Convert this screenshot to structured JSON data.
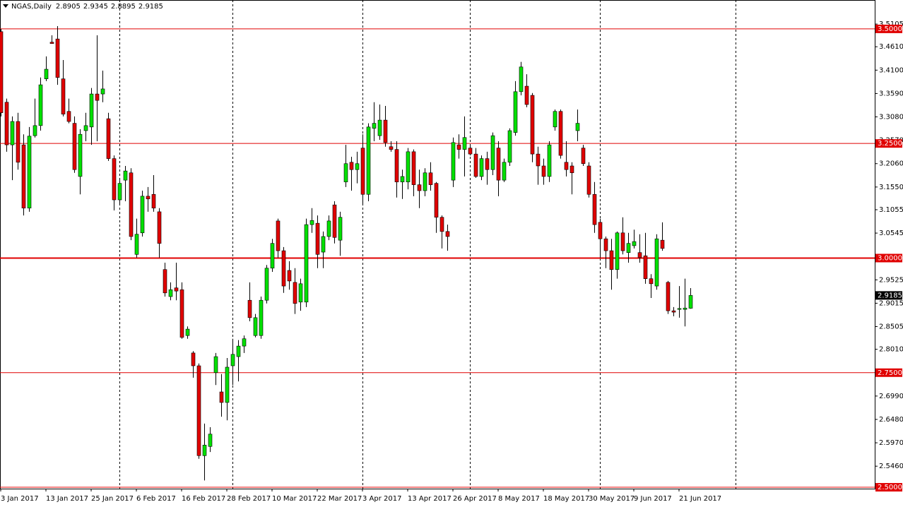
{
  "chart_data": {
    "type": "candlestick",
    "symbol": "NGAS,Daily",
    "header_ohlc": [
      2.8905,
      2.9345,
      2.8895,
      2.9185
    ],
    "current_price": 2.9185,
    "up_color": "#00e000",
    "down_color": "#e00000",
    "level_color": "#e00000",
    "ylim": [
      2.497,
      3.563
    ],
    "yticks": [
      {
        "value": 3.5105,
        "label": "3.5105"
      },
      {
        "value": 3.461,
        "label": "3.4610"
      },
      {
        "value": 3.41,
        "label": "3.4100"
      },
      {
        "value": 3.359,
        "label": "3.3590"
      },
      {
        "value": 3.308,
        "label": "3.3080"
      },
      {
        "value": 3.257,
        "label": "3.2570"
      },
      {
        "value": 3.206,
        "label": "3.2060"
      },
      {
        "value": 3.155,
        "label": "3.1550"
      },
      {
        "value": 3.1055,
        "label": "3.1055"
      },
      {
        "value": 3.0545,
        "label": "3.0545"
      },
      {
        "value": 2.9525,
        "label": "2.9525"
      },
      {
        "value": 2.9015,
        "label": "2.9015"
      },
      {
        "value": 2.8505,
        "label": "2.8505"
      },
      {
        "value": 2.801,
        "label": "2.8010"
      },
      {
        "value": 2.699,
        "label": "2.6990"
      },
      {
        "value": 2.648,
        "label": "2.6480"
      },
      {
        "value": 2.597,
        "label": "2.5970"
      },
      {
        "value": 2.546,
        "label": "2.5460"
      }
    ],
    "levels": [
      {
        "value": 3.5,
        "label": "3.5000"
      },
      {
        "value": 3.25,
        "label": "3.2500"
      },
      {
        "value": 3.0,
        "label": "3.0000"
      },
      {
        "value": 2.75,
        "label": "2.7500"
      },
      {
        "value": 2.5,
        "label": "2.5000"
      }
    ],
    "categories": [
      "3 Jan 2017",
      null,
      null,
      null,
      null,
      null,
      null,
      null,
      "13 Jan 2017",
      null,
      null,
      null,
      null,
      null,
      null,
      null,
      "25 Jan 2017",
      null,
      null,
      null,
      null,
      null,
      null,
      null,
      "6 Feb 2017",
      null,
      null,
      null,
      null,
      null,
      null,
      null,
      "16 Feb 2017",
      null,
      null,
      null,
      null,
      null,
      null,
      null,
      "28 Feb 2017",
      null,
      null,
      null,
      null,
      null,
      null,
      null,
      "10 Mar 2017",
      null,
      null,
      null,
      null,
      null,
      null,
      null,
      "22 Mar 2017",
      null,
      null,
      null,
      null,
      null,
      null,
      null,
      "3 Apr 2017",
      null,
      null,
      null,
      null,
      null,
      null,
      null,
      "13 Apr 2017",
      null,
      null,
      null,
      null,
      null,
      null,
      null,
      "26 Apr 2017",
      null,
      null,
      null,
      null,
      null,
      null,
      null,
      "8 May 2017",
      null,
      null,
      null,
      null,
      null,
      null,
      null,
      "18 May 2017",
      null,
      null,
      null,
      null,
      null,
      null,
      null,
      "30 May 2017",
      null,
      null,
      null,
      null,
      null,
      null,
      null,
      "9 Jun 2017",
      null,
      null,
      null,
      null,
      null,
      null,
      null,
      "21 Jun 2017",
      null,
      null
    ],
    "ohlc": [
      [
        3.494,
        3.5,
        3.309,
        3.317
      ],
      [
        3.34,
        3.348,
        3.232,
        3.247
      ],
      [
        3.247,
        3.309,
        3.17,
        3.298
      ],
      [
        3.298,
        3.317,
        3.193,
        3.209
      ],
      [
        3.247,
        3.27,
        3.093,
        3.109
      ],
      [
        3.109,
        3.286,
        3.101,
        3.266
      ],
      [
        3.267,
        3.348,
        3.263,
        3.289
      ],
      [
        3.289,
        3.394,
        3.278,
        3.378
      ],
      [
        3.391,
        3.44,
        3.386,
        3.412
      ],
      [
        3.471,
        3.486,
        3.468,
        3.468
      ],
      [
        3.478,
        3.506,
        3.378,
        3.394
      ],
      [
        3.391,
        3.432,
        3.309,
        3.314
      ],
      [
        3.32,
        3.348,
        3.294,
        3.298
      ],
      [
        3.294,
        3.309,
        3.186,
        3.193
      ],
      [
        3.178,
        3.281,
        3.139,
        3.27
      ],
      [
        3.278,
        3.317,
        3.255,
        3.289
      ],
      [
        3.286,
        3.371,
        3.247,
        3.358
      ],
      [
        3.358,
        3.486,
        3.255,
        3.344
      ],
      [
        3.358,
        3.409,
        3.34,
        3.369
      ],
      [
        3.304,
        3.317,
        3.212,
        3.217
      ],
      [
        3.217,
        3.224,
        3.104,
        3.127
      ],
      [
        3.127,
        3.17,
        3.116,
        3.163
      ],
      [
        3.17,
        3.201,
        3.124,
        3.19
      ],
      [
        3.186,
        3.196,
        3.039,
        3.047
      ],
      [
        3.008,
        3.086,
        3.001,
        3.052
      ],
      [
        3.055,
        3.147,
        3.047,
        3.135
      ],
      [
        3.135,
        3.155,
        3.101,
        3.129
      ],
      [
        3.139,
        3.181,
        3.101,
        3.109
      ],
      [
        3.101,
        3.109,
        3.001,
        3.032
      ],
      [
        2.975,
        2.99,
        2.916,
        2.924
      ],
      [
        2.916,
        2.947,
        2.908,
        2.931
      ],
      [
        2.935,
        2.99,
        2.908,
        2.928
      ],
      [
        2.931,
        2.947,
        2.824,
        2.827
      ],
      [
        2.831,
        2.851,
        2.824,
        2.845
      ],
      [
        2.793,
        2.797,
        2.739,
        2.765
      ],
      [
        2.765,
        2.77,
        2.562,
        2.569
      ],
      [
        2.569,
        2.639,
        2.515,
        2.592
      ],
      [
        2.589,
        2.631,
        2.577,
        2.616
      ],
      [
        2.75,
        2.793,
        2.723,
        2.785
      ],
      [
        2.708,
        2.747,
        2.654,
        2.685
      ],
      [
        2.685,
        2.782,
        2.646,
        2.762
      ],
      [
        2.765,
        2.824,
        2.723,
        2.79
      ],
      [
        2.785,
        2.821,
        2.731,
        2.808
      ],
      [
        2.808,
        2.831,
        2.793,
        2.824
      ],
      [
        2.908,
        2.947,
        2.862,
        2.87
      ],
      [
        2.831,
        2.878,
        2.827,
        2.87
      ],
      [
        2.831,
        2.916,
        2.824,
        2.908
      ],
      [
        2.908,
        2.985,
        2.901,
        2.978
      ],
      [
        2.978,
        3.042,
        2.97,
        3.032
      ],
      [
        3.081,
        3.086,
        3.001,
        3.016
      ],
      [
        3.016,
        3.024,
        2.924,
        2.939
      ],
      [
        2.973,
        2.993,
        2.931,
        2.95
      ],
      [
        2.947,
        2.978,
        2.878,
        2.901
      ],
      [
        2.904,
        2.955,
        2.885,
        2.944
      ],
      [
        2.904,
        3.086,
        2.893,
        3.073
      ],
      [
        3.073,
        3.109,
        3.055,
        3.082
      ],
      [
        3.076,
        3.093,
        2.978,
        3.008
      ],
      [
        3.013,
        3.058,
        2.978,
        3.047
      ],
      [
        3.047,
        3.093,
        3.039,
        3.081
      ],
      [
        3.116,
        3.124,
        3.032,
        3.045
      ],
      [
        3.039,
        3.101,
        3.005,
        3.089
      ],
      [
        3.166,
        3.247,
        3.155,
        3.206
      ],
      [
        3.209,
        3.221,
        3.147,
        3.193
      ],
      [
        3.193,
        3.232,
        3.163,
        3.206
      ],
      [
        3.24,
        3.27,
        3.116,
        3.139
      ],
      [
        3.139,
        3.294,
        3.124,
        3.286
      ],
      [
        3.283,
        3.34,
        3.255,
        3.294
      ],
      [
        3.267,
        3.335,
        3.258,
        3.301
      ],
      [
        3.301,
        3.332,
        3.243,
        3.252
      ],
      [
        3.243,
        3.255,
        3.232,
        3.237
      ],
      [
        3.237,
        3.255,
        3.132,
        3.166
      ],
      [
        3.166,
        3.193,
        3.129,
        3.178
      ],
      [
        3.166,
        3.24,
        3.15,
        3.232
      ],
      [
        3.232,
        3.237,
        3.135,
        3.16
      ],
      [
        3.16,
        3.193,
        3.109,
        3.147
      ],
      [
        3.147,
        3.196,
        3.135,
        3.186
      ],
      [
        3.186,
        3.209,
        3.147,
        3.16
      ],
      [
        3.163,
        3.166,
        3.055,
        3.089
      ],
      [
        3.089,
        3.093,
        3.021,
        3.058
      ],
      [
        3.058,
        3.073,
        3.016,
        3.047
      ],
      [
        3.17,
        3.263,
        3.155,
        3.252
      ],
      [
        3.247,
        3.27,
        3.217,
        3.237
      ],
      [
        3.237,
        3.309,
        3.178,
        3.263
      ],
      [
        3.24,
        3.247,
        3.224,
        3.227
      ],
      [
        3.227,
        3.24,
        3.175,
        3.178
      ],
      [
        3.178,
        3.224,
        3.17,
        3.217
      ],
      [
        3.217,
        3.232,
        3.16,
        3.193
      ],
      [
        3.193,
        3.274,
        3.181,
        3.267
      ],
      [
        3.24,
        3.255,
        3.135,
        3.17
      ],
      [
        3.17,
        3.217,
        3.166,
        3.209
      ],
      [
        3.209,
        3.283,
        3.201,
        3.278
      ],
      [
        3.274,
        3.386,
        3.267,
        3.363
      ],
      [
        3.363,
        3.428,
        3.355,
        3.417
      ],
      [
        3.375,
        3.401,
        3.329,
        3.335
      ],
      [
        3.355,
        3.36,
        3.209,
        3.227
      ],
      [
        3.227,
        3.243,
        3.16,
        3.201
      ],
      [
        3.201,
        3.217,
        3.16,
        3.178
      ],
      [
        3.178,
        3.255,
        3.166,
        3.247
      ],
      [
        3.286,
        3.324,
        3.278,
        3.32
      ],
      [
        3.32,
        3.324,
        3.217,
        3.224
      ],
      [
        3.209,
        3.255,
        3.178,
        3.193
      ],
      [
        3.201,
        3.209,
        3.139,
        3.186
      ],
      [
        3.278,
        3.324,
        3.255,
        3.294
      ],
      [
        3.24,
        3.247,
        3.201,
        3.206
      ],
      [
        3.201,
        3.209,
        3.132,
        3.139
      ],
      [
        3.139,
        3.166,
        3.055,
        3.073
      ],
      [
        3.078,
        3.086,
        3.001,
        3.042
      ],
      [
        3.042,
        3.047,
        2.978,
        3.016
      ],
      [
        3.016,
        3.042,
        2.931,
        2.975
      ],
      [
        2.975,
        3.058,
        2.955,
        3.055
      ],
      [
        3.055,
        3.089,
        3.008,
        3.016
      ],
      [
        3.012,
        3.055,
        2.99,
        3.032
      ],
      [
        3.027,
        3.062,
        3.021,
        3.036
      ],
      [
        3.012,
        3.052,
        2.99,
        3.001
      ],
      [
        3.005,
        3.055,
        2.944,
        2.955
      ],
      [
        2.955,
        2.965,
        2.913,
        2.944
      ],
      [
        2.939,
        3.052,
        2.931,
        3.042
      ],
      [
        3.039,
        3.078,
        3.016,
        3.021
      ],
      [
        2.947,
        2.95,
        2.878,
        2.885
      ],
      [
        2.885,
        2.893,
        2.873,
        2.882
      ],
      [
        2.888,
        2.939,
        2.87,
        2.89
      ],
      [
        2.888,
        2.955,
        2.851,
        2.891
      ],
      [
        2.8905,
        2.9345,
        2.8895,
        2.9185
      ]
    ]
  }
}
